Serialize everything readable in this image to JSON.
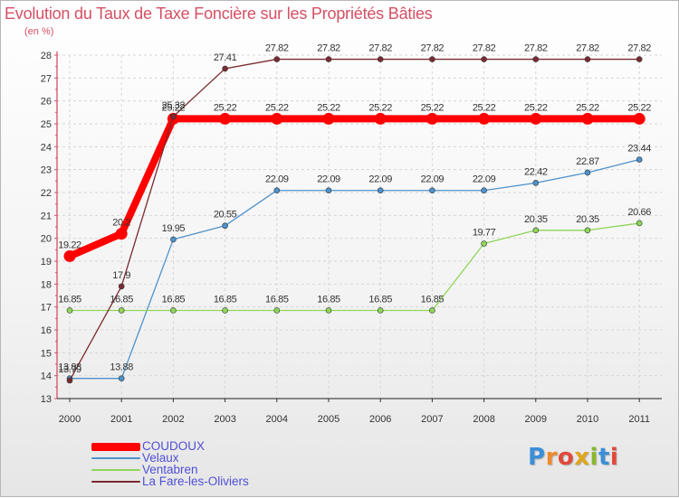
{
  "header": {
    "title": "Evolution du Taux de Taxe Foncière sur les Propriétés Bâties",
    "unit": "(en %)"
  },
  "logo": {
    "letters": [
      "P",
      "r",
      "o",
      "x",
      "i",
      "t",
      "i"
    ],
    "colors": [
      "#3b8fd8",
      "#f08a2c",
      "#e04a3a",
      "#e0a51a",
      "#8ab82e",
      "#3b8fd8",
      "#e04a3a"
    ]
  },
  "chart_data": {
    "type": "line",
    "title": "Evolution du Taux de Taxe Foncière sur les Propriétés Bâties",
    "ylabel": "(en %)",
    "xlabel": "",
    "x": [
      "2000",
      "2001",
      "2002",
      "2003",
      "2004",
      "2005",
      "2006",
      "2007",
      "2008",
      "2009",
      "2010",
      "2011"
    ],
    "ylim": [
      13,
      28
    ],
    "yticks": [
      13,
      14,
      15,
      16,
      17,
      18,
      19,
      20,
      21,
      22,
      23,
      24,
      25,
      26,
      27,
      28
    ],
    "grid": true,
    "legend_position": "bottom-left",
    "series": [
      {
        "name": "COUDOUX",
        "color": "#ff0000",
        "thick": true,
        "values": [
          19.22,
          20.2,
          25.22,
          25.22,
          25.22,
          25.22,
          25.22,
          25.22,
          25.22,
          25.22,
          25.22,
          25.22
        ],
        "labels": [
          "19.22",
          "20.2",
          "25.22",
          "25.22",
          "25.22",
          "25.22",
          "25.22",
          "25.22",
          "25.22",
          "25.22",
          "25.22",
          "25.22"
        ]
      },
      {
        "name": "Velaux",
        "color": "#4d92cc",
        "thick": false,
        "values": [
          13.88,
          13.88,
          19.95,
          20.55,
          22.09,
          22.09,
          22.09,
          22.09,
          22.09,
          22.42,
          22.87,
          23.44
        ],
        "labels": [
          "13.88",
          "13.88",
          "19.95",
          "20.55",
          "22.09",
          "22.09",
          "22.09",
          "22.09",
          "22.09",
          "22.42",
          "22.87",
          "23.44"
        ]
      },
      {
        "name": "Ventabren",
        "color": "#8fd65a",
        "thick": false,
        "values": [
          16.85,
          16.85,
          16.85,
          16.85,
          16.85,
          16.85,
          16.85,
          16.85,
          19.77,
          20.35,
          20.35,
          20.66
        ],
        "labels": [
          "16.85",
          "16.85",
          "16.85",
          "16.85",
          "16.85",
          "16.85",
          "16.85",
          "16.85",
          "19.77",
          "20.35",
          "20.35",
          "20.66"
        ]
      },
      {
        "name": "La Fare-les-Oliviers",
        "color": "#7b2a30",
        "thick": false,
        "values": [
          13.79,
          17.9,
          25.32,
          27.41,
          27.82,
          27.82,
          27.82,
          27.82,
          27.82,
          27.82,
          27.82,
          27.82
        ],
        "labels": [
          "13.79",
          "17.9",
          "25.32",
          "27.41",
          "27.82",
          "27.82",
          "27.82",
          "27.82",
          "27.82",
          "27.82",
          "27.82",
          "27.82"
        ]
      }
    ]
  }
}
